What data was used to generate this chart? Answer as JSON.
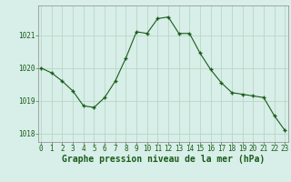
{
  "x": [
    0,
    1,
    2,
    3,
    4,
    5,
    6,
    7,
    8,
    9,
    10,
    11,
    12,
    13,
    14,
    15,
    16,
    17,
    18,
    19,
    20,
    21,
    22,
    23
  ],
  "y": [
    1020.0,
    1019.85,
    1019.6,
    1019.3,
    1018.85,
    1018.8,
    1019.1,
    1019.6,
    1020.3,
    1021.1,
    1021.05,
    1021.5,
    1021.55,
    1021.05,
    1021.05,
    1020.45,
    1019.95,
    1019.55,
    1019.25,
    1019.2,
    1019.15,
    1019.1,
    1018.55,
    1018.1
  ],
  "line_color": "#1a5c1a",
  "marker": "+",
  "marker_size": 3.5,
  "marker_edge_width": 1.0,
  "line_width": 0.8,
  "bg_color": "#d8eee8",
  "grid_color": "#b0d4c0",
  "xlabel": "Graphe pression niveau de la mer (hPa)",
  "xlabel_color": "#1a5c1a",
  "tick_color": "#1a5c1a",
  "axis_color": "#888888",
  "ylim": [
    1017.75,
    1021.9
  ],
  "xlim": [
    -0.3,
    23.3
  ],
  "yticks": [
    1018,
    1019,
    1020,
    1021
  ],
  "xticks": [
    0,
    1,
    2,
    3,
    4,
    5,
    6,
    7,
    8,
    9,
    10,
    11,
    12,
    13,
    14,
    15,
    16,
    17,
    18,
    19,
    20,
    21,
    22,
    23
  ],
  "xtick_labels": [
    "0",
    "1",
    "2",
    "3",
    "4",
    "5",
    "6",
    "7",
    "8",
    "9",
    "10",
    "11",
    "12",
    "13",
    "14",
    "15",
    "16",
    "17",
    "18",
    "19",
    "20",
    "21",
    "22",
    "23"
  ],
  "ytick_labels": [
    "1018",
    "1019",
    "1020",
    "1021"
  ],
  "tick_fontsize": 5.5,
  "xlabel_fontsize": 7.0
}
